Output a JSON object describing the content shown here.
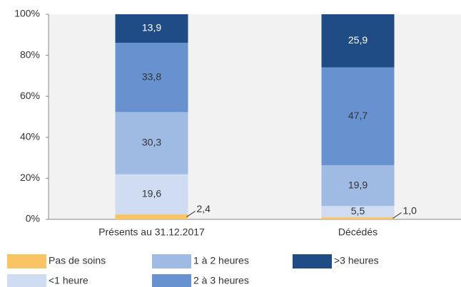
{
  "chart_data": {
    "type": "stacked_bar",
    "categories": [
      "Présents au 31.12.2017",
      "Décédés"
    ],
    "series": [
      {
        "name": "Pas de soins",
        "color": "#f9c464",
        "values": [
          2.4,
          1.0
        ],
        "value_labels": [
          "2,4",
          "1,0"
        ]
      },
      {
        "name": "<1 heure",
        "color": "#cfdcf2",
        "values": [
          19.6,
          5.5
        ],
        "value_labels": [
          "19,6",
          "5,5"
        ]
      },
      {
        "name": "1 à 2 heures",
        "color": "#a0bbe3",
        "values": [
          30.3,
          19.9
        ],
        "value_labels": [
          "30,3",
          "19,9"
        ]
      },
      {
        "name": "2 à 3 heures",
        "color": "#6892cf",
        "values": [
          33.8,
          47.7
        ],
        "value_labels": [
          "33,8",
          "47,7"
        ]
      },
      {
        "name": ">3 heures",
        "color": "#1f4c85",
        "values": [
          13.9,
          25.9
        ],
        "value_labels": [
          "13,9",
          "25,9"
        ]
      }
    ],
    "ylim": [
      0,
      100
    ],
    "yticks": [
      {
        "value": 0,
        "label": "0%"
      },
      {
        "value": 20,
        "label": "20%"
      },
      {
        "value": 40,
        "label": "40%"
      },
      {
        "value": 60,
        "label": "60%"
      },
      {
        "value": 80,
        "label": "80%"
      },
      {
        "value": 100,
        "label": "100%"
      }
    ],
    "grid": false,
    "legend": "bottom"
  }
}
